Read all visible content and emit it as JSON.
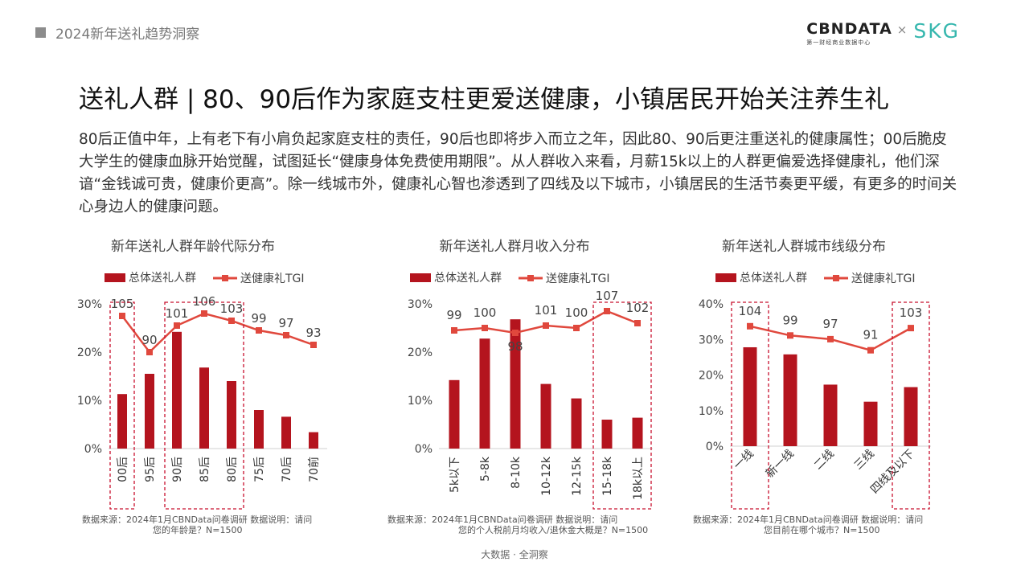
{
  "header": {
    "title": "2024新年送礼趋势洞察"
  },
  "logo": {
    "brand": "CBNDATA",
    "sub": "第一财经商业数据中心",
    "x": "×",
    "partner": "SKG"
  },
  "main": {
    "title": "送礼人群 | 80、90后作为家庭支柱更爱送健康，小镇居民开始关注养生礼",
    "body": "80后正值中年，上有老下有小肩负起家庭支柱的责任，90后也即将步入而立之年，因此80、90后更注重送礼的健康属性；00后脆皮大学生的健康血脉开始觉醒，试图延长“健康身体免费使用期限”。从人群收入来看，月薪15k以上的人群更偏爱选择健康礼，他们深谙“金钱诚可贵，健康价更高”。除一线城市外，健康礼心智也渗透到了四线及以下城市，小镇居民的生活节奏更平缓，有更多的时间关心身边人的健康问题。"
  },
  "colors": {
    "bar": "#b4141e",
    "line": "#e0483d",
    "dash": "#c8102e"
  },
  "chart_data": [
    {
      "type": "bar",
      "title": "新年送礼人群年龄代际分布",
      "categories": [
        "00后",
        "95后",
        "90后",
        "85后",
        "80后",
        "75后",
        "70后",
        "70前"
      ],
      "series": [
        {
          "name": "总体送礼人群",
          "type": "bar",
          "values": [
            11.3,
            15.5,
            24.2,
            16.8,
            14.0,
            8.0,
            6.6,
            3.4
          ]
        },
        {
          "name": "送健康礼TGI",
          "type": "line",
          "values": [
            105,
            90,
            101,
            106,
            103,
            99,
            97,
            93
          ]
        }
      ],
      "ylim": [
        0,
        30
      ],
      "yticks": [
        "0%",
        "10%",
        "20%",
        "30%"
      ],
      "highlight_groups": [
        [
          0,
          0
        ],
        [
          2,
          4
        ]
      ],
      "note": "数据来源：2024年1月CBNData问卷调研 数据说明：请问您的年龄是？N=1500"
    },
    {
      "type": "bar",
      "title": "新年送礼人群月收入分布",
      "categories": [
        "5k以下",
        "5-8k",
        "8-10k",
        "10-12k",
        "12-15k",
        "15-18k",
        "18k以上"
      ],
      "series": [
        {
          "name": "总体送礼人群",
          "type": "bar",
          "values": [
            14.2,
            22.8,
            26.8,
            13.4,
            10.4,
            6.0,
            6.4
          ]
        },
        {
          "name": "送健康礼TGI",
          "type": "line",
          "values": [
            99,
            100,
            98,
            101,
            100,
            107,
            102
          ]
        }
      ],
      "ylim": [
        0,
        30
      ],
      "yticks": [
        "0%",
        "10%",
        "20%",
        "30%"
      ],
      "highlight_groups": [
        [
          5,
          6
        ]
      ],
      "note": "数据来源：2024年1月CBNData问卷调研 数据说明：请问您的个人税前月均收入/退休金大概是？N=1500"
    },
    {
      "type": "bar",
      "title": "新年送礼人群城市线级分布",
      "categories": [
        "一线",
        "新一线",
        "二线",
        "三线",
        "四线及以下"
      ],
      "series": [
        {
          "name": "总体送礼人群",
          "type": "bar",
          "values": [
            27.8,
            25.8,
            17.3,
            12.5,
            16.6
          ]
        },
        {
          "name": "送健康礼TGI",
          "type": "line",
          "values": [
            104,
            99,
            97,
            91,
            103
          ]
        }
      ],
      "ylim": [
        0,
        40
      ],
      "yticks": [
        "0%",
        "10%",
        "20%",
        "30%",
        "40%"
      ],
      "highlight_groups": [
        [
          0,
          0
        ],
        [
          4,
          4
        ]
      ],
      "note": "数据来源：2024年1月CBNData问卷调研 数据说明：请问您目前在哪个城市？N=1500"
    }
  ],
  "footer": {
    "text": "大数据 · 全洞察"
  }
}
